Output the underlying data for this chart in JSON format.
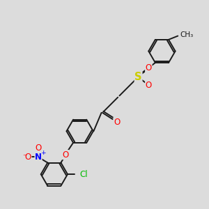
{
  "bg_color": "#dcdcdc",
  "bond_color": "#1a1a1a",
  "bond_width": 1.4,
  "atom_colors": {
    "O": "#ff0000",
    "S": "#cccc00",
    "N": "#0000ff",
    "Cl": "#00bb00",
    "C": "#1a1a1a"
  },
  "font_size": 8.5,
  "fig_width": 3.0,
  "fig_height": 3.0,
  "scale": 10
}
